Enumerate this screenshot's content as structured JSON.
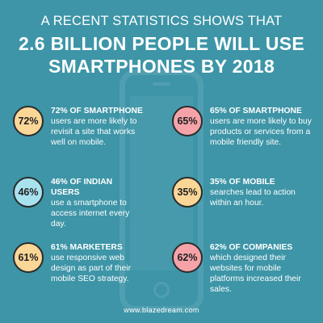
{
  "header": {
    "subtitle": "A RECENT STATISTICS SHOWS THAT",
    "headline_line1": "2.6 BILLION PEOPLE WILL USE",
    "headline_line2": "SMARTPHONES BY 2018"
  },
  "stats": [
    {
      "percent": "72%",
      "lead": "72% OF SMARTPHONE",
      "body": "users are more likely to revisit a site that works well on mobile.",
      "color": "#fad797"
    },
    {
      "percent": "65%",
      "lead": "65% OF SMARTPHONE",
      "body": "users are more likely to buy products or services from a mobile friendly site.",
      "color": "#f5a3a9"
    },
    {
      "percent": "46%",
      "lead": "46% OF INDIAN USERS",
      "body": "use a smartphone to access internet every day.",
      "color": "#a9e2ef"
    },
    {
      "percent": "35%",
      "lead": "35% OF MOBILE",
      "body": "searches lead to action within an hour.",
      "color": "#fad797"
    },
    {
      "percent": "61%",
      "lead": "61% MARKETERS",
      "body": "use responsive web design as part of their mobile SEO strategy.",
      "color": "#fad797"
    },
    {
      "percent": "62%",
      "lead": "62% OF COMPANIES",
      "body": "which designed their websites for mobile platforms increased their sales.",
      "color": "#f5a3a9"
    }
  ],
  "footer": {
    "url": "www.blazedream.com"
  },
  "colors": {
    "background": "#3d95a7"
  }
}
